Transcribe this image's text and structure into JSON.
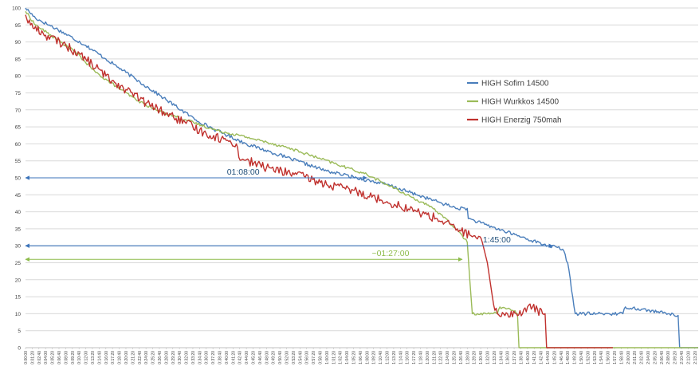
{
  "chart_data": {
    "type": "line",
    "title": "",
    "xlabel": "",
    "ylabel": "",
    "ylim": [
      0,
      100
    ],
    "yticks": [
      0,
      5,
      10,
      15,
      20,
      25,
      30,
      35,
      40,
      45,
      50,
      55,
      60,
      65,
      70,
      75,
      80,
      85,
      90,
      95,
      100
    ],
    "x_unit": "minutes",
    "xlim": [
      0,
      134
    ],
    "x_tick_labels": [
      "0:00:00",
      "0:01:20",
      "0:02:40",
      "0:04:00",
      "0:05:20",
      "0:06:40",
      "0:08:00",
      "0:09:20",
      "0:10:40",
      "0:12:00",
      "0:13:20",
      "0:14:40",
      "0:16:00",
      "0:17:20",
      "0:18:40",
      "0:20:00",
      "0:21:20",
      "0:22:40",
      "0:24:00",
      "0:25:20",
      "0:26:40",
      "0:28:00",
      "0:29:20",
      "0:30:40",
      "0:32:00",
      "0:33:20",
      "0:34:40",
      "0:36:00",
      "0:37:20",
      "0:38:40",
      "0:40:00",
      "0:41:20",
      "0:42:40",
      "0:44:00",
      "0:45:20",
      "0:46:40",
      "0:48:00",
      "0:49:20",
      "0:50:40",
      "0:52:00",
      "0:53:20",
      "0:54:40",
      "0:56:00",
      "0:57:20",
      "0:58:40",
      "1:00:00",
      "1:01:20",
      "1:02:40",
      "1:04:00",
      "1:05:20",
      "1:06:40",
      "1:08:00",
      "1:09:20",
      "1:10:40",
      "1:12:00",
      "1:13:20",
      "1:14:40",
      "1:16:00",
      "1:17:20",
      "1:18:40",
      "1:20:00",
      "1:21:20",
      "1:22:40",
      "1:24:00",
      "1:25:20",
      "1:26:40",
      "1:28:00",
      "1:29:20",
      "1:30:40",
      "1:32:00",
      "1:33:20",
      "1:34:40",
      "1:36:00",
      "1:37:20",
      "1:38:40",
      "1:40:00",
      "1:41:20",
      "1:42:40",
      "1:44:00",
      "1:45:20",
      "1:46:40",
      "1:48:00",
      "1:49:20",
      "1:50:40",
      "1:52:00",
      "1:53:20",
      "1:54:40",
      "1:56:00",
      "1:57:20",
      "1:58:40",
      "2:00:00",
      "2:01:20",
      "2:02:40",
      "2:04:00",
      "2:05:20",
      "2:06:40",
      "2:08:00",
      "2:09:20",
      "2:10:40",
      "2:12:00",
      "2:13:20"
    ],
    "grid": true,
    "legend_position": "right",
    "series": [
      {
        "name": "HIGH Sofirn 14500",
        "color": "#4a7ebb",
        "noise": 0.5,
        "points": [
          [
            0,
            100
          ],
          [
            2,
            97
          ],
          [
            6,
            94
          ],
          [
            12,
            89
          ],
          [
            16,
            85
          ],
          [
            22,
            79
          ],
          [
            28,
            73
          ],
          [
            34,
            67
          ],
          [
            38,
            64
          ],
          [
            44,
            60
          ],
          [
            52,
            56
          ],
          [
            60,
            52
          ],
          [
            66,
            50
          ],
          [
            72,
            48
          ],
          [
            78,
            45
          ],
          [
            82,
            43
          ],
          [
            86,
            41
          ],
          [
            88,
            41
          ],
          [
            88.2,
            38
          ],
          [
            92,
            36
          ],
          [
            96,
            34
          ],
          [
            100,
            32
          ],
          [
            104,
            30
          ],
          [
            106,
            29.5
          ],
          [
            107,
            29
          ],
          [
            108,
            25
          ],
          [
            109.5,
            10
          ],
          [
            114,
            10
          ],
          [
            118,
            10
          ],
          [
            119,
            10
          ],
          [
            119.5,
            12
          ],
          [
            122,
            11.5
          ],
          [
            128,
            10
          ],
          [
            130,
            9.5
          ],
          [
            130.3,
            0
          ],
          [
            134,
            0
          ]
        ]
      },
      {
        "name": "HIGH Wurkkos 14500",
        "color": "#9bbb59",
        "noise": 0.4,
        "points": [
          [
            0,
            99
          ],
          [
            2,
            95
          ],
          [
            6,
            91
          ],
          [
            10,
            87
          ],
          [
            14,
            81
          ],
          [
            18,
            77
          ],
          [
            22,
            73
          ],
          [
            26,
            70
          ],
          [
            32,
            67
          ],
          [
            38,
            64
          ],
          [
            44,
            62
          ],
          [
            52,
            59
          ],
          [
            58,
            56
          ],
          [
            64,
            53
          ],
          [
            68,
            51
          ],
          [
            72,
            48
          ],
          [
            76,
            45
          ],
          [
            80,
            42
          ],
          [
            83,
            39
          ],
          [
            85,
            36
          ],
          [
            87,
            33
          ],
          [
            88,
            31
          ],
          [
            88.5,
            20
          ],
          [
            89,
            10
          ],
          [
            90,
            10
          ],
          [
            92,
            10
          ],
          [
            93,
            10
          ],
          [
            93.5,
            10.5
          ],
          [
            94,
            10
          ],
          [
            94.5,
            12
          ],
          [
            97,
            11
          ],
          [
            98,
            10
          ],
          [
            98.3,
            0
          ],
          [
            100,
            0
          ],
          [
            134,
            0
          ]
        ]
      },
      {
        "name": "HIGH Enerzig 750mah",
        "color": "#c0312e",
        "noise": 1.3,
        "points": [
          [
            0,
            98
          ],
          [
            1,
            95
          ],
          [
            4,
            92
          ],
          [
            8,
            89
          ],
          [
            12,
            85
          ],
          [
            16,
            80
          ],
          [
            20,
            76
          ],
          [
            24,
            72
          ],
          [
            28,
            69
          ],
          [
            32,
            66
          ],
          [
            36,
            63
          ],
          [
            40,
            61
          ],
          [
            42,
            60
          ],
          [
            42.5,
            56
          ],
          [
            48,
            53
          ],
          [
            54,
            51
          ],
          [
            60,
            48
          ],
          [
            66,
            46
          ],
          [
            72,
            43
          ],
          [
            78,
            40
          ],
          [
            82,
            38
          ],
          [
            86,
            35
          ],
          [
            90,
            32
          ],
          [
            91,
            31
          ],
          [
            92,
            25
          ],
          [
            93,
            15
          ],
          [
            93.5,
            11
          ],
          [
            94,
            10
          ],
          [
            96,
            10
          ],
          [
            99,
            10
          ],
          [
            100,
            12
          ],
          [
            101,
            12
          ],
          [
            103,
            10
          ],
          [
            103.5,
            10
          ],
          [
            103.8,
            0
          ],
          [
            104,
            0
          ],
          [
            117,
            0
          ]
        ]
      }
    ],
    "annotations": [
      {
        "label": "01:08:00",
        "y": 50,
        "x_start": 0,
        "x_end": 68,
        "color": "#1f4e79"
      },
      {
        "label": "1:45:00",
        "y": 30,
        "x_start": 0,
        "x_end": 105,
        "color": "#1f4e79"
      },
      {
        "label": "~01:27:00",
        "y": 26,
        "x_start": 0,
        "x_end": 87,
        "color": "#8dbb4a"
      }
    ]
  }
}
